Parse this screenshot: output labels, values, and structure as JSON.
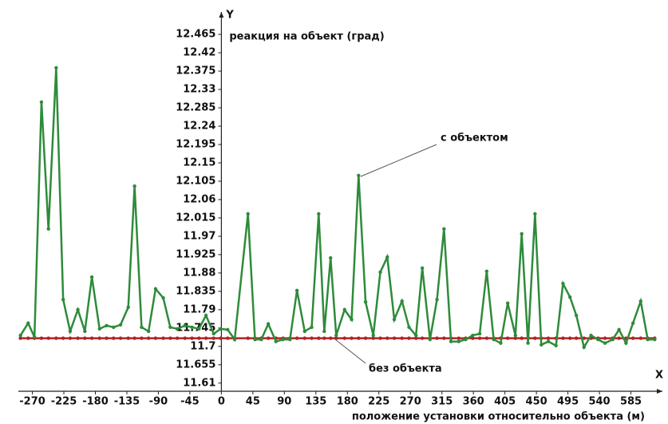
{
  "chart_data": {
    "type": "line",
    "y_label": "Y",
    "x_label": "X",
    "y_title": "реакция на объект (град)",
    "x_title": "положение установки относительно объекта (м)",
    "annotations": [
      "с объектом",
      "без объекта"
    ],
    "x": [
      -287,
      -276,
      -267,
      -257,
      -247,
      -236,
      -226,
      -216,
      -205,
      -195,
      -185,
      -174,
      -164,
      -154,
      -144,
      -133,
      -124,
      -114,
      -104,
      -94,
      -83,
      -73,
      -63,
      -52,
      -42,
      -32,
      -22,
      -11,
      -1,
      9,
      19,
      38,
      48,
      57,
      67,
      78,
      88,
      98,
      108,
      119,
      129,
      139,
      147,
      156,
      164,
      176,
      186,
      196,
      206,
      217,
      227,
      237,
      247,
      258,
      268,
      278,
      287,
      298,
      308,
      318,
      328,
      339,
      349,
      359,
      369,
      379,
      389,
      399,
      409,
      420,
      429,
      438,
      448,
      457,
      467,
      478,
      488,
      498,
      507,
      518,
      528,
      538,
      548,
      559,
      568,
      578,
      588,
      599,
      609,
      619
    ],
    "series": [
      {
        "name": "с объектом",
        "color": "#2e8b3a",
        "values": [
          11.727,
          11.757,
          11.723,
          12.299,
          11.988,
          12.383,
          11.815,
          11.737,
          11.79,
          11.737,
          11.87,
          11.743,
          11.751,
          11.747,
          11.753,
          11.796,
          12.093,
          11.747,
          11.737,
          11.841,
          11.819,
          11.747,
          11.743,
          11.751,
          11.747,
          11.743,
          11.776,
          11.731,
          11.743,
          11.741,
          11.717,
          12.025,
          11.717,
          11.717,
          11.755,
          11.712,
          11.717,
          11.717,
          11.837,
          11.737,
          11.747,
          12.025,
          11.737,
          11.917,
          11.727,
          11.79,
          11.766,
          12.119,
          11.809,
          11.727,
          11.882,
          11.919,
          11.766,
          11.811,
          11.747,
          11.727,
          11.892,
          11.717,
          11.815,
          11.988,
          11.712,
          11.712,
          11.717,
          11.727,
          11.731,
          11.884,
          11.717,
          11.708,
          11.806,
          11.727,
          11.976,
          11.708,
          12.025,
          11.704,
          11.712,
          11.702,
          11.854,
          11.821,
          11.776,
          11.698,
          11.727,
          11.717,
          11.708,
          11.717,
          11.741,
          11.708,
          11.757,
          11.811,
          11.717,
          11.717
        ]
      },
      {
        "name": "без объекта",
        "color": "#b22222",
        "values": [
          11.72,
          11.72,
          11.72,
          11.72,
          11.72,
          11.72,
          11.72,
          11.72,
          11.72,
          11.72,
          11.72,
          11.72,
          11.72,
          11.72,
          11.72,
          11.72,
          11.72,
          11.72,
          11.72,
          11.72,
          11.72,
          11.72,
          11.72,
          11.72,
          11.72,
          11.72,
          11.72,
          11.72,
          11.72,
          11.72,
          11.72,
          11.72,
          11.72,
          11.72,
          11.72,
          11.72,
          11.72,
          11.72,
          11.72,
          11.72,
          11.72,
          11.72,
          11.72,
          11.72,
          11.72,
          11.72,
          11.72,
          11.72,
          11.72,
          11.72,
          11.72,
          11.72,
          11.72,
          11.72,
          11.72,
          11.72,
          11.72,
          11.72,
          11.72,
          11.72,
          11.72,
          11.72,
          11.72,
          11.72,
          11.72,
          11.72,
          11.72,
          11.72,
          11.72,
          11.72,
          11.72,
          11.72,
          11.72,
          11.72,
          11.72,
          11.72,
          11.72,
          11.72,
          11.72,
          11.72,
          11.72,
          11.72,
          11.72,
          11.72,
          11.72,
          11.72,
          11.72,
          11.72,
          11.72,
          11.72
        ]
      }
    ],
    "xlim": [
      -290,
      630
    ],
    "ylim": [
      11.59,
      12.52
    ],
    "xticks": [
      -270,
      -225,
      -180,
      -135,
      -90,
      -45,
      0,
      45,
      90,
      135,
      180,
      225,
      270,
      315,
      360,
      405,
      450,
      495,
      540,
      585
    ],
    "yticks": [
      11.61,
      11.655,
      11.7,
      11.745,
      11.79,
      11.835,
      11.88,
      11.925,
      11.97,
      12.015,
      12.06,
      12.105,
      12.15,
      12.195,
      12.24,
      12.285,
      12.33,
      12.375,
      12.42,
      12.465
    ]
  }
}
